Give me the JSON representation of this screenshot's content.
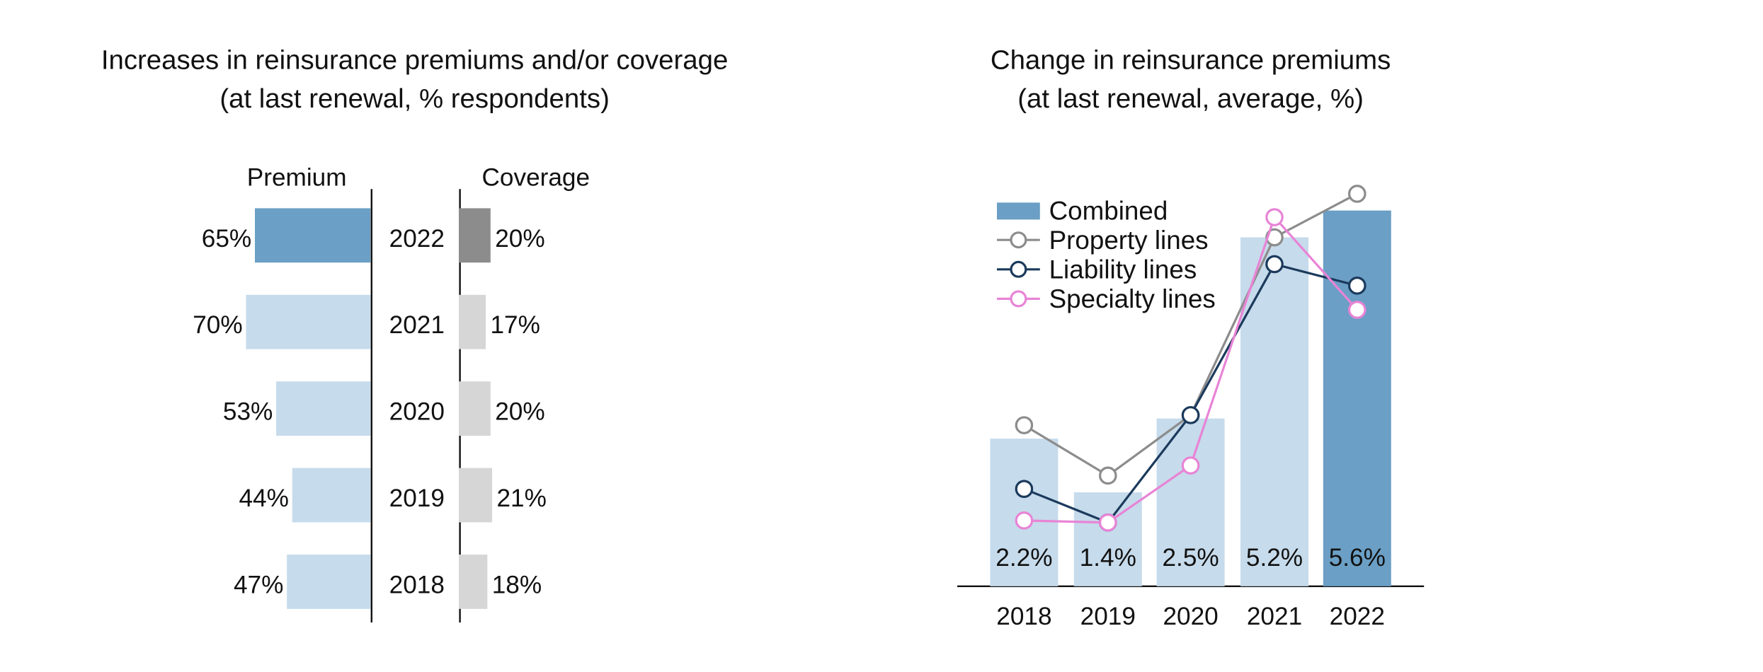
{
  "left_chart": {
    "title_line1": "Increases in reinsurance premiums and/or coverage",
    "title_line2": "(at last renewal, % respondents)",
    "premium_header": "Premium",
    "coverage_header": "Coverage"
  },
  "right_chart": {
    "title_line1": "Change in reinsurance premiums",
    "title_line2": "(at last renewal, average, %)"
  },
  "colors": {
    "dark_blue": "#6b9fc5",
    "light_blue": "#c6dbeb",
    "dark_gray": "#8c8c8c",
    "light_gray": "#d6d6d6",
    "property": "#8c8c8c",
    "liability": "#1b3a5c",
    "specialty": "#e884d6"
  },
  "chart_data": [
    {
      "type": "bar",
      "title": "Increases in reinsurance premiums and/or coverage",
      "subtitle": "(at last renewal, % respondents)",
      "orientation": "horizontal-butterfly",
      "categories": [
        "2022",
        "2021",
        "2020",
        "2019",
        "2018"
      ],
      "series": [
        {
          "name": "Premium",
          "values": [
            65,
            70,
            53,
            44,
            47
          ],
          "labels": [
            "65%",
            "70%",
            "53%",
            "44%",
            "47%"
          ]
        },
        {
          "name": "Coverage",
          "values": [
            20,
            17,
            20,
            21,
            18
          ],
          "labels": [
            "20%",
            "17%",
            "20%",
            "21%",
            "18%"
          ]
        }
      ],
      "highlight_category": "2022"
    },
    {
      "type": "bar",
      "title": "Change in reinsurance premiums",
      "subtitle": "(at last renewal, average, %)",
      "categories": [
        "2018",
        "2019",
        "2020",
        "2021",
        "2022"
      ],
      "series": [
        {
          "name": "Combined",
          "kind": "bar",
          "values": [
            2.2,
            1.4,
            2.5,
            5.2,
            5.6
          ],
          "labels": [
            "2.2%",
            "1.4%",
            "2.5%",
            "5.2%",
            "5.6%"
          ]
        },
        {
          "name": "Property lines",
          "kind": "line",
          "values": [
            2.4,
            1.65,
            2.55,
            5.2,
            5.85
          ]
        },
        {
          "name": "Liability lines",
          "kind": "line",
          "values": [
            1.45,
            0.95,
            2.55,
            4.8,
            4.48
          ]
        },
        {
          "name": "Specialty lines",
          "kind": "line",
          "values": [
            0.98,
            0.95,
            1.8,
            5.5,
            4.12
          ]
        }
      ],
      "ylim": [
        0,
        6
      ],
      "legend": "top-left",
      "highlight_category": "2022"
    }
  ]
}
